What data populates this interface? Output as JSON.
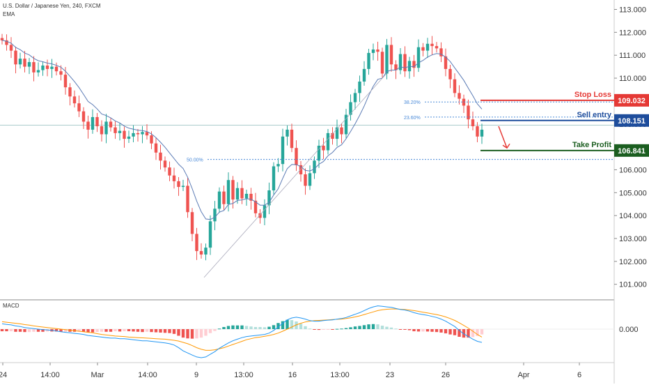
{
  "header": {
    "symbol": "U.S. Dollar / Japanese Yen, 240, FXCM",
    "indicator": "EMA",
    "macd_label": "MACD"
  },
  "colors": {
    "up": "#26a69a",
    "down": "#ef5350",
    "ema": "#5b7bb5",
    "macd_line": "#2196f3",
    "signal_line": "#ff9800",
    "stop_loss": "#e53935",
    "sell_entry": "#1e4d9c",
    "take_profit": "#1b5e20",
    "fib": "#4a8ad8",
    "arrow": "#e53935"
  },
  "price_axis": {
    "ticks": [
      "113.000",
      "112.000",
      "111.000",
      "110.000",
      "109.000",
      "108.000",
      "107.000",
      "106.000",
      "105.000",
      "104.000",
      "103.000",
      "102.000",
      "101.000"
    ],
    "macd_tick": "0.000"
  },
  "time_axis": {
    "labels": [
      "24",
      "14:00",
      "Mar",
      "14:00",
      "9",
      "13:00",
      "16",
      "13:00",
      "23",
      "26",
      "Apr",
      "6"
    ]
  },
  "trade": {
    "stop_loss_label": "Stop Loss",
    "stop_loss_price": "109.032",
    "sell_entry_label": "Sell entry",
    "sell_entry_price": "108.151",
    "take_profit_label": "Take Profit",
    "take_profit_price": "106.841"
  },
  "fib_levels": [
    {
      "label": "38.20%",
      "price": 108.96
    },
    {
      "label": "23.60%",
      "price": 108.3
    },
    {
      "label": "50.00%",
      "price": 106.45
    }
  ],
  "chart_data": {
    "type": "candlestick",
    "ylim": [
      100.6,
      113.3
    ],
    "closes": [
      111.65,
      111.45,
      111.2,
      110.6,
      110.85,
      110.5,
      110.7,
      110.25,
      110.35,
      110.55,
      110.4,
      110.5,
      110.3,
      110.15,
      109.6,
      109.2,
      108.9,
      108.55,
      108.1,
      107.75,
      108.3,
      107.9,
      107.55,
      108.1,
      107.85,
      107.6,
      107.7,
      107.35,
      107.45,
      107.6,
      107.55,
      107.65,
      107.5,
      107.15,
      106.75,
      106.4,
      106.1,
      105.75,
      105.5,
      105.25,
      105.3,
      104.15,
      103.2,
      102.45,
      102.3,
      102.6,
      103.75,
      104.3,
      105.05,
      104.5,
      105.55,
      104.7,
      105.2,
      104.75,
      104.95,
      104.65,
      104.1,
      103.9,
      104.45,
      105.1,
      106.15,
      106.25,
      107.45,
      107.75,
      106.95,
      106.2,
      105.8,
      105.3,
      105.85,
      106.4,
      107.05,
      106.85,
      107.6,
      107.35,
      107.85,
      107.55,
      108.4,
      108.95,
      109.35,
      109.85,
      110.4,
      111.1,
      111.25,
      111.15,
      110.2,
      111.45,
      110.6,
      110.35,
      111.05,
      110.3,
      110.75,
      110.45,
      111.35,
      111.2,
      111.5,
      111.4,
      111.3,
      110.95,
      110.4,
      109.95,
      109.35,
      109.1,
      108.8,
      108.2,
      107.9,
      107.45,
      107.75
    ]
  },
  "macd": {
    "macd_line": [
      0.2,
      0.18,
      0.16,
      0.12,
      0.1,
      0.06,
      0.04,
      0.02,
      0.0,
      -0.02,
      -0.03,
      -0.05,
      -0.07,
      -0.1,
      -0.12,
      -0.14,
      -0.16,
      -0.18,
      -0.2,
      -0.24,
      -0.26,
      -0.28,
      -0.3,
      -0.32,
      -0.34,
      -0.34,
      -0.36,
      -0.36,
      -0.38,
      -0.4,
      -0.42,
      -0.44,
      -0.44,
      -0.46,
      -0.48,
      -0.5,
      -0.52,
      -0.55,
      -0.6,
      -0.7,
      -0.82,
      -0.9,
      -0.98,
      -1.05,
      -1.08,
      -1.05,
      -0.95,
      -0.85,
      -0.72,
      -0.62,
      -0.52,
      -0.44,
      -0.38,
      -0.32,
      -0.28,
      -0.26,
      -0.24,
      -0.22,
      -0.2,
      -0.15,
      -0.05,
      0.08,
      0.22,
      0.35,
      0.42,
      0.45,
      0.42,
      0.38,
      0.32,
      0.3,
      0.3,
      0.32,
      0.34,
      0.35,
      0.38,
      0.4,
      0.44,
      0.5,
      0.56,
      0.62,
      0.7,
      0.78,
      0.84,
      0.88,
      0.86,
      0.84,
      0.82,
      0.78,
      0.74,
      0.72,
      0.68,
      0.62,
      0.58,
      0.55,
      0.52,
      0.48,
      0.44,
      0.38,
      0.3,
      0.2,
      0.1,
      -0.05,
      -0.18,
      -0.28,
      -0.38,
      -0.46,
      -0.5
    ],
    "signal_line": [
      0.28,
      0.26,
      0.24,
      0.22,
      0.2,
      0.17,
      0.15,
      0.12,
      0.1,
      0.08,
      0.06,
      0.04,
      0.02,
      0.0,
      -0.02,
      -0.04,
      -0.06,
      -0.08,
      -0.1,
      -0.12,
      -0.14,
      -0.17,
      -0.2,
      -0.22,
      -0.24,
      -0.26,
      -0.27,
      -0.28,
      -0.3,
      -0.31,
      -0.32,
      -0.33,
      -0.34,
      -0.35,
      -0.36,
      -0.37,
      -0.38,
      -0.4,
      -0.42,
      -0.45,
      -0.5,
      -0.55,
      -0.62,
      -0.7,
      -0.76,
      -0.8,
      -0.8,
      -0.78,
      -0.74,
      -0.7,
      -0.64,
      -0.58,
      -0.52,
      -0.46,
      -0.4,
      -0.36,
      -0.32,
      -0.3,
      -0.27,
      -0.24,
      -0.2,
      -0.15,
      -0.08,
      0.0,
      0.08,
      0.16,
      0.22,
      0.27,
      0.3,
      0.32,
      0.33,
      0.34,
      0.35,
      0.36,
      0.37,
      0.38,
      0.4,
      0.43,
      0.46,
      0.5,
      0.55,
      0.6,
      0.65,
      0.7,
      0.73,
      0.75,
      0.76,
      0.76,
      0.75,
      0.74,
      0.72,
      0.7,
      0.67,
      0.64,
      0.61,
      0.58,
      0.55,
      0.51,
      0.46,
      0.4,
      0.33,
      0.24,
      0.14,
      0.04,
      -0.08,
      -0.2,
      -0.3
    ]
  }
}
